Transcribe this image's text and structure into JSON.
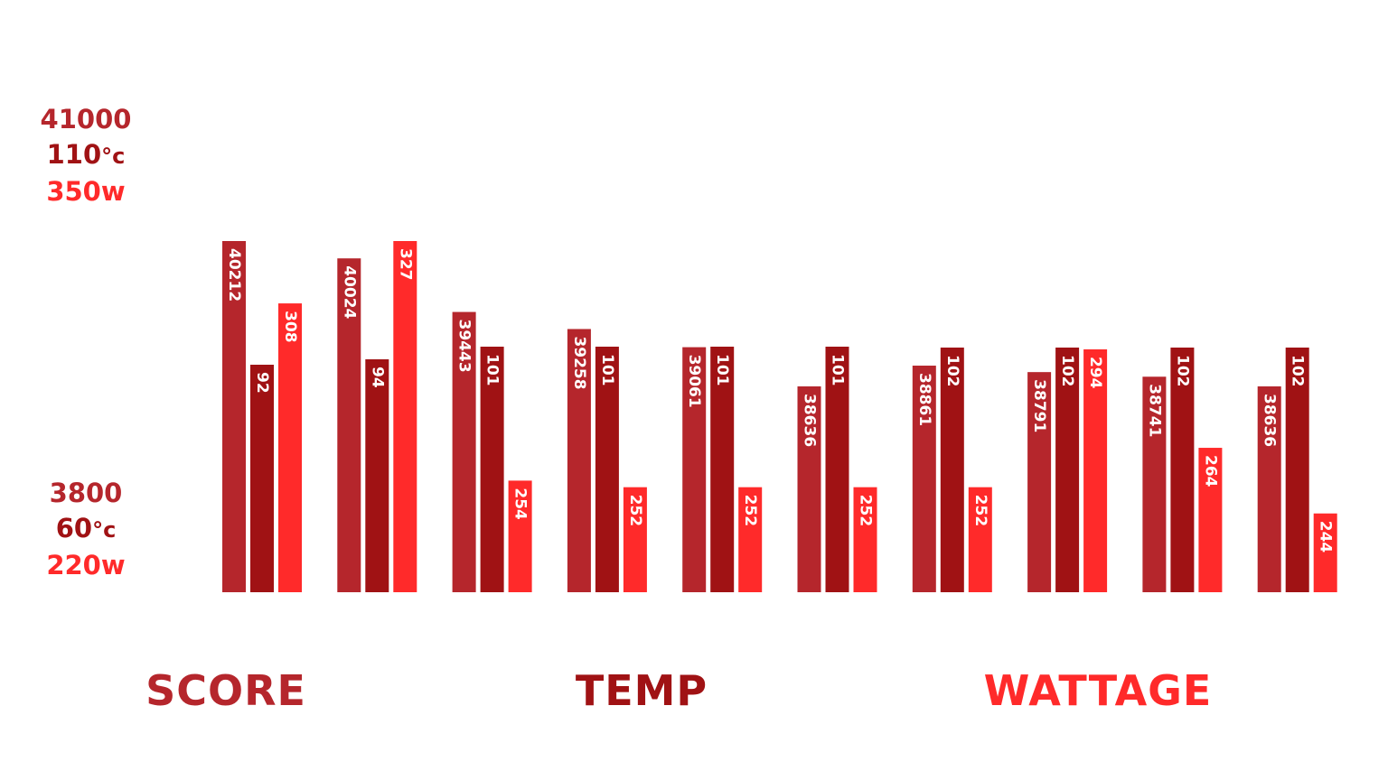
{
  "colors": {
    "score": "#b5262c",
    "temp": "#a01214",
    "wattage": "#ff2a2a"
  },
  "axis": {
    "top": {
      "score": "41000",
      "temp": "110",
      "temp_unit": "°c",
      "wattage": "350w"
    },
    "bottom": {
      "score": "3800",
      "temp": "60",
      "temp_unit": "°c",
      "wattage": "220w"
    }
  },
  "chart_data": {
    "type": "bar",
    "series": [
      {
        "name": "SCORE",
        "values": [
          40212,
          40024,
          39443,
          39258,
          39061,
          38636,
          38861,
          38791,
          38741,
          38636
        ]
      },
      {
        "name": "TEMP",
        "values": [
          92,
          94,
          101,
          101,
          101,
          101,
          102,
          102,
          102,
          102
        ]
      },
      {
        "name": "WATTAGE",
        "values": [
          308,
          327,
          254,
          252,
          252,
          252,
          252,
          294,
          264,
          244
        ]
      }
    ],
    "labels": [
      [
        "40212",
        "92",
        "308"
      ],
      [
        "40024",
        "94",
        "327"
      ],
      [
        "39443",
        "101",
        "254"
      ],
      [
        "39258",
        "101",
        "252"
      ],
      [
        "39061",
        "101",
        "252"
      ],
      [
        "38636",
        "101",
        "252"
      ],
      [
        "38861",
        "102",
        "252"
      ],
      [
        "38791",
        "102",
        "294"
      ],
      [
        "38741",
        "102",
        "264"
      ],
      [
        "38636",
        "102",
        "244"
      ]
    ],
    "score_range": [
      3800,
      41000
    ],
    "temp_range": [
      60,
      110
    ],
    "wattage_range": [
      220,
      350
    ],
    "grid": false,
    "legend_position": "bottom"
  }
}
